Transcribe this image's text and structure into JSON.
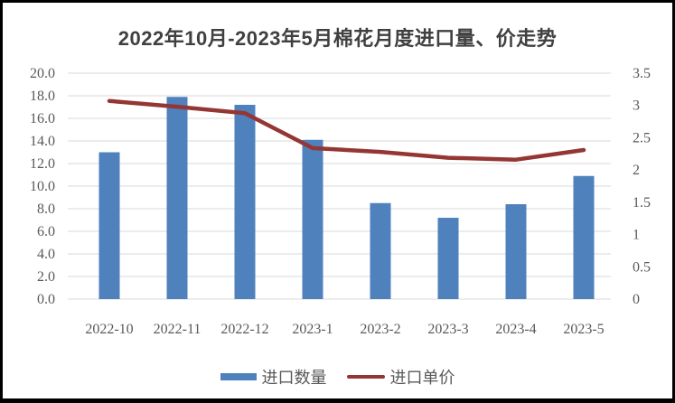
{
  "title": "2022年10月-2023年5月棉花月度进口量、价走势",
  "chart_data": {
    "type": "combo-bar-line",
    "title": "2022年10月-2023年5月棉花月度进口量、价走势",
    "categories": [
      "2022-10",
      "2022-11",
      "2022-12",
      "2023-1",
      "2023-2",
      "2023-3",
      "2023-4",
      "2023-5"
    ],
    "series": [
      {
        "name": "进口数量",
        "type": "bar",
        "axis": "left",
        "color": "#4F81BD",
        "values": [
          13.0,
          17.9,
          17.2,
          14.1,
          8.5,
          7.2,
          8.4,
          10.9
        ]
      },
      {
        "name": "进口单价",
        "type": "line",
        "axis": "right",
        "color": "#943634",
        "values": [
          3.07,
          2.98,
          2.88,
          2.34,
          2.28,
          2.19,
          2.16,
          2.31
        ]
      }
    ],
    "left_axis": {
      "min": 0,
      "max": 20,
      "step": 2,
      "tick_labels": [
        "0.0",
        "2.0",
        "4.0",
        "6.0",
        "8.0",
        "10.0",
        "12.0",
        "14.0",
        "16.0",
        "18.0",
        "20.0"
      ]
    },
    "right_axis": {
      "min": 0,
      "max": 3.5,
      "step": 0.5,
      "tick_labels": [
        "0",
        "0.5",
        "1",
        "1.5",
        "2",
        "2.5",
        "3",
        "3.5"
      ]
    },
    "grid": true,
    "legend_position": "bottom"
  },
  "legend": {
    "bar_label": "进口数量",
    "line_label": "进口单价"
  },
  "colors": {
    "bar": "#4F81BD",
    "line": "#943634",
    "grid": "#D9D9D9",
    "axis_text": "#595959",
    "title_text": "#404040",
    "frame_border": "#000000",
    "background": "#FFFFFF"
  }
}
